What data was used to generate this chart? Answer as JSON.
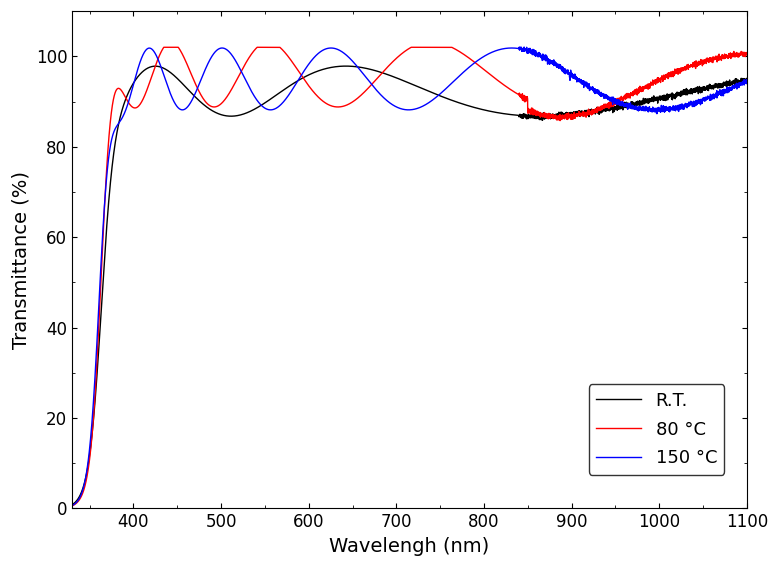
{
  "title": "",
  "xlabel": "Wavelengh (nm)",
  "ylabel": "Transmittance (%)",
  "xlim": [
    330,
    1100
  ],
  "ylim": [
    0,
    110
  ],
  "yticks": [
    0,
    20,
    40,
    60,
    80,
    100
  ],
  "xticks": [
    400,
    500,
    600,
    700,
    800,
    900,
    1000,
    1100
  ],
  "legend_labels": [
    "R.T.",
    "80 °C",
    "150 °C"
  ],
  "legend_colors": [
    "black",
    "red",
    "blue"
  ],
  "background_color": "#ffffff",
  "line_width": 1.0
}
